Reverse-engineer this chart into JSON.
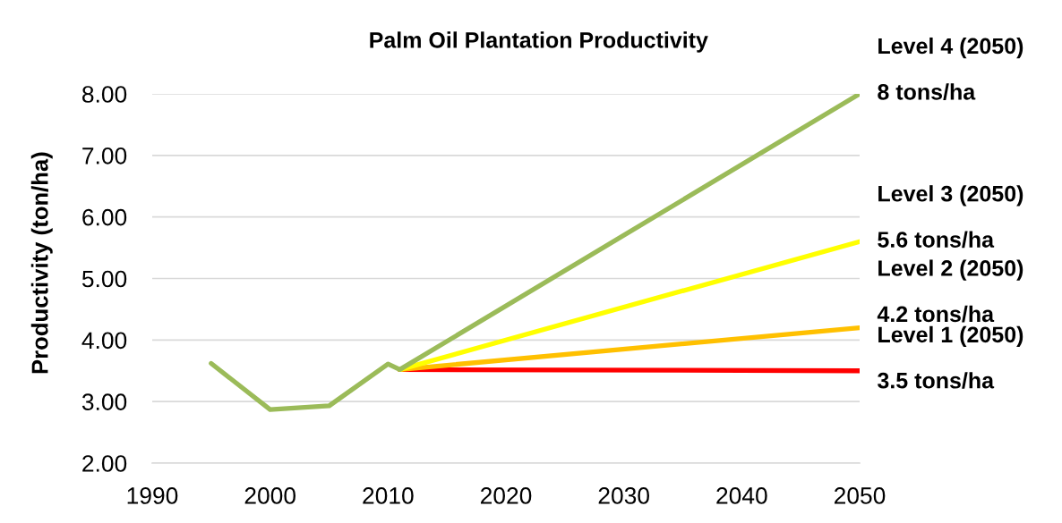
{
  "chart_data": {
    "type": "line",
    "title": "Palm Oil Plantation Productivity",
    "ylabel": "Productivity (ton/ha)",
    "series": [
      {
        "name": "Level 1 (2050)",
        "color": "#ff0000",
        "x": [
          2011,
          2050
        ],
        "values": [
          3.52,
          3.5
        ],
        "value_labels": [
          null,
          "3.5 tons/ha"
        ]
      },
      {
        "name": "Level 2 (2050)",
        "color": "#ffc000",
        "x": [
          2011,
          2050
        ],
        "values": [
          3.52,
          4.2
        ],
        "value_labels": [
          null,
          "4.2 tons/ha"
        ]
      },
      {
        "name": "Level 3 (2050)",
        "color": "#ffff00",
        "x": [
          2011,
          2050
        ],
        "values": [
          3.52,
          5.6
        ],
        "value_labels": [
          null,
          "5.6 tons/ha"
        ]
      },
      {
        "name": "Level 4 (2050)",
        "color": "#9bbb59",
        "x": [
          1995,
          2000,
          2005,
          2010,
          2011,
          2050
        ],
        "values": [
          3.62,
          2.87,
          2.93,
          3.61,
          3.52,
          8
        ],
        "value_labels": [
          null,
          null,
          null,
          null,
          null,
          "8 tons/ha"
        ]
      }
    ],
    "xlim": [
      1990,
      2050
    ],
    "xticks": [
      1990,
      2000,
      2010,
      2020,
      2030,
      2040,
      2050
    ],
    "ylim": [
      2,
      8
    ],
    "yticks": [
      {
        "value": 2,
        "label": "2.00"
      },
      {
        "value": 3,
        "label": "3.00"
      },
      {
        "value": 4,
        "label": "4.00"
      },
      {
        "value": 5,
        "label": "5.00"
      },
      {
        "value": 6,
        "label": "6.00"
      },
      {
        "value": 7,
        "label": "7.00"
      },
      {
        "value": 8,
        "label": "8.00"
      }
    ],
    "grid": "y",
    "line_style": "solid"
  }
}
